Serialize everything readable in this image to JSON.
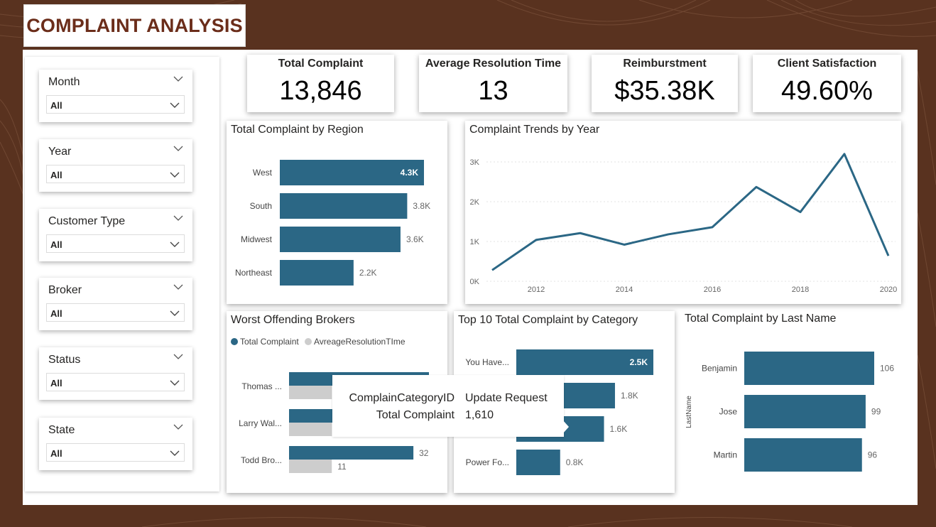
{
  "header": {
    "title": "COMPLAINT ANALYSIS"
  },
  "colors": {
    "bar": "#2b6785",
    "secondary_bar": "#cdcdcd",
    "background": "#59321f",
    "title": "#6b2d1a"
  },
  "slicers": [
    {
      "label": "Month",
      "value": "All"
    },
    {
      "label": "Year",
      "value": "All"
    },
    {
      "label": "Customer Type",
      "value": "All"
    },
    {
      "label": "Broker",
      "value": "All"
    },
    {
      "label": "Status",
      "value": "All"
    },
    {
      "label": "State",
      "value": "All"
    }
  ],
  "kpis": [
    {
      "label": "Total Complaint",
      "value": "13,846"
    },
    {
      "label": "Average Resolution Time",
      "value": "13"
    },
    {
      "label": "Reimburstment",
      "value": "$35.38K"
    },
    {
      "label": "Client Satisfaction",
      "value": "49.60%"
    }
  ],
  "chart_data": [
    {
      "id": "region",
      "type": "bar",
      "title": "Total Complaint by Region",
      "categories": [
        "West",
        "South",
        "Midwest",
        "Northeast"
      ],
      "values": [
        4300,
        3800,
        3600,
        2200
      ],
      "labels": [
        "4.3K",
        "3.8K",
        "3.6K",
        "2.2K"
      ]
    },
    {
      "id": "trend",
      "type": "line",
      "title": "Complaint Trends by Year",
      "x": [
        2011,
        2012,
        2013,
        2014,
        2015,
        2016,
        2017,
        2018,
        2019,
        2020
      ],
      "values": [
        280,
        1040,
        1210,
        920,
        1180,
        1360,
        2370,
        1740,
        3200,
        640
      ],
      "x_ticks": [
        "2012",
        "2014",
        "2016",
        "2018",
        "2020"
      ],
      "y_ticks": [
        "0K",
        "1K",
        "2K",
        "3K"
      ],
      "ylim": [
        0,
        3500
      ]
    },
    {
      "id": "brokers",
      "type": "bar",
      "title": "Worst Offending Brokers",
      "categories": [
        "Thomas ...",
        "Larry Wal...",
        "Todd Bro..."
      ],
      "series": [
        {
          "name": "Total Complaint",
          "values": [
            36,
            34,
            32
          ]
        },
        {
          "name": "AvreageResolutionTIme",
          "values": [
            11,
            11,
            11
          ]
        }
      ],
      "value_labels": [
        "32",
        "11"
      ]
    },
    {
      "id": "category",
      "type": "bar",
      "title": "Top 10 Total Complaint by Category",
      "categories": [
        "You Have...",
        "",
        "",
        "Power Fo..."
      ],
      "values": [
        2500,
        1800,
        1600,
        800
      ],
      "labels": [
        "2.5K",
        "1.8K",
        "1.6K",
        "0.8K"
      ]
    },
    {
      "id": "lastname",
      "type": "bar",
      "title": "Total Complaint by Last Name",
      "ylabel": "LastName",
      "categories": [
        "Benjamin",
        "Jose",
        "Martin"
      ],
      "values": [
        106,
        99,
        96
      ],
      "labels": [
        "106",
        "99",
        "96"
      ]
    }
  ],
  "tooltip": {
    "rows": [
      {
        "key": "ComplainCategoryID",
        "value": "Update Request"
      },
      {
        "key": "Total Complaint",
        "value": "1,610"
      }
    ]
  }
}
